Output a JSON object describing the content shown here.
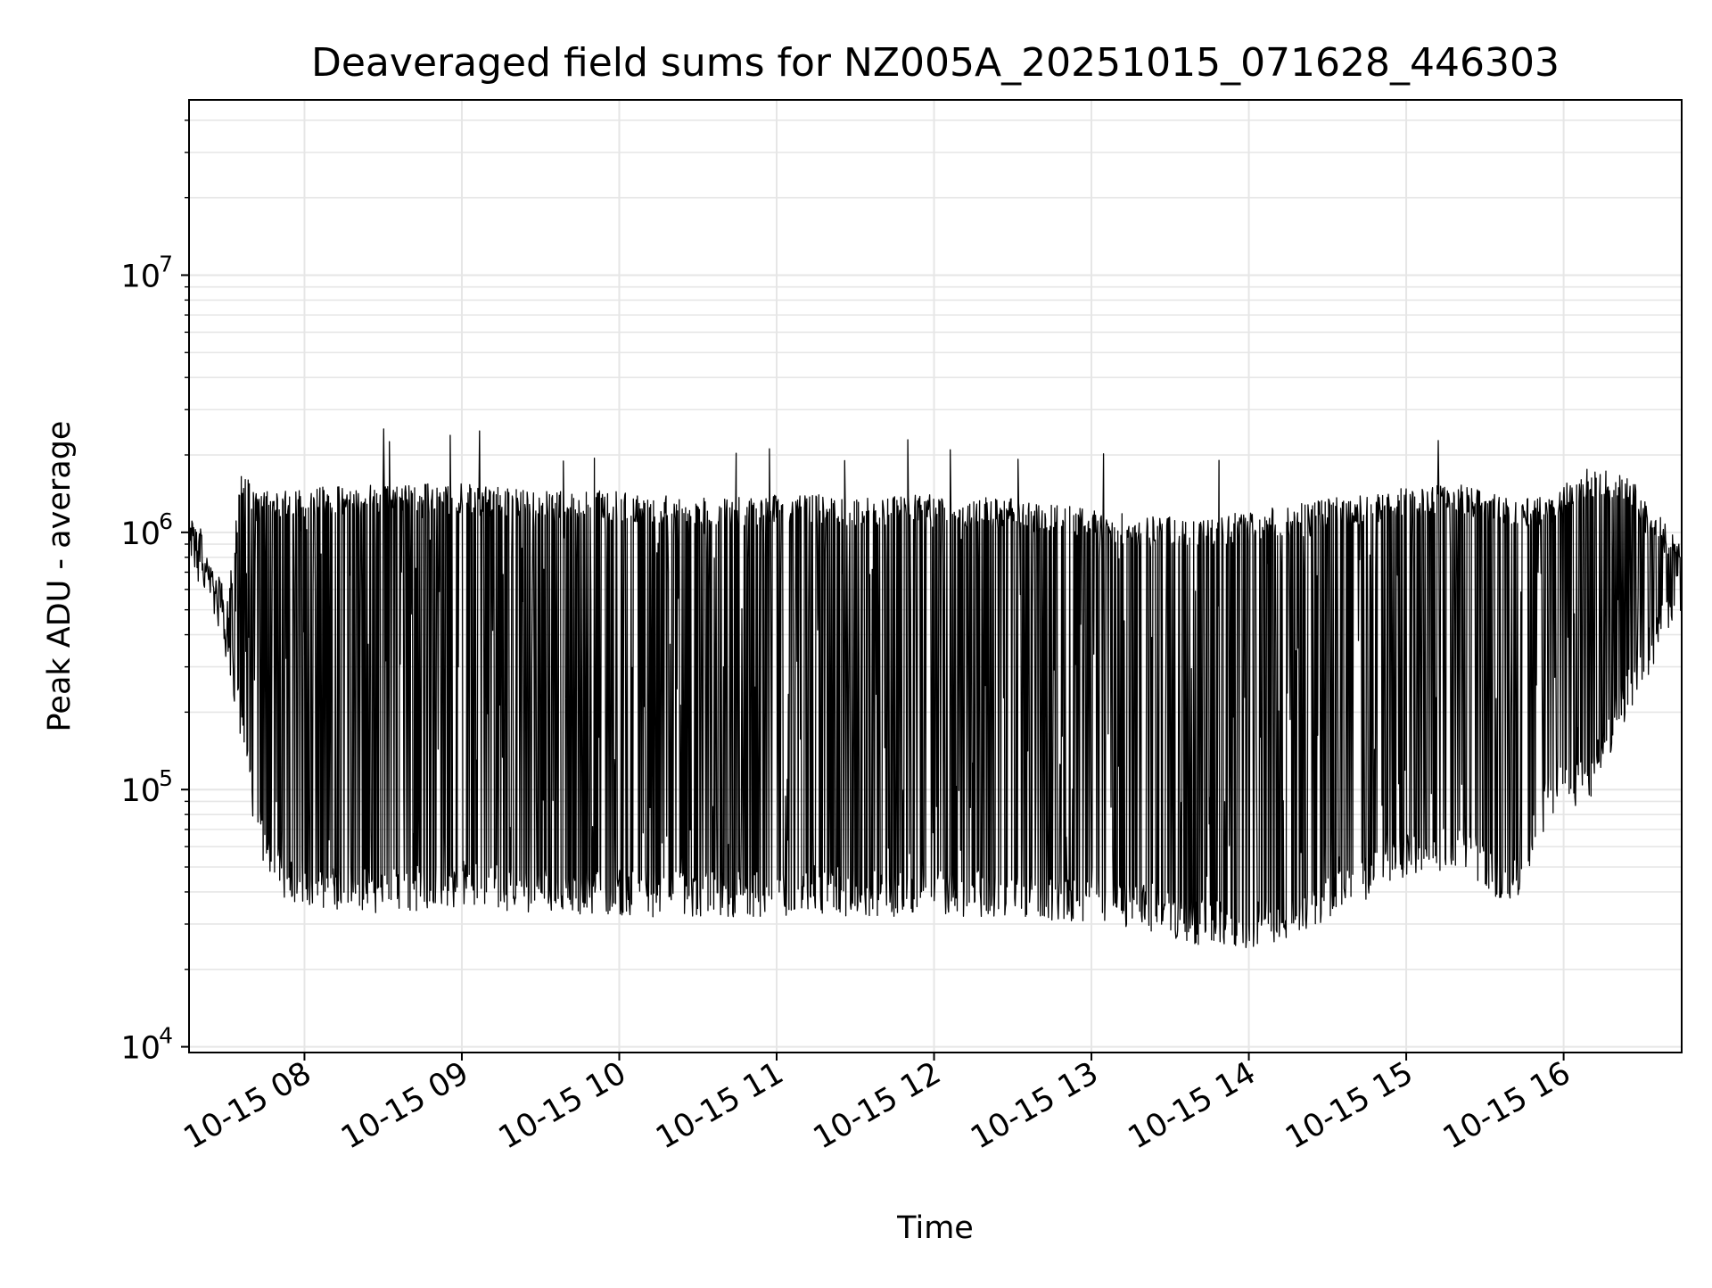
{
  "chart_data": {
    "type": "line",
    "title": "Deaveraged field sums for NZ005A_20251015_071628_446303",
    "xlabel": "Time",
    "ylabel": "Peak ADU - average",
    "yscale": "log",
    "xlim": [
      "2025-10-15 07:16",
      "2025-10-15 16:45"
    ],
    "ylim": [
      9500,
      48000000
    ],
    "grid": true,
    "legend": "none",
    "line_color": "#000000",
    "grid_color": "#e6e6e6",
    "x_ticks": [
      {
        "value": "2025-10-15 08:00",
        "label": "10-15 08"
      },
      {
        "value": "2025-10-15 09:00",
        "label": "10-15 09"
      },
      {
        "value": "2025-10-15 10:00",
        "label": "10-15 10"
      },
      {
        "value": "2025-10-15 11:00",
        "label": "10-15 11"
      },
      {
        "value": "2025-10-15 12:00",
        "label": "10-15 12"
      },
      {
        "value": "2025-10-15 13:00",
        "label": "10-15 13"
      },
      {
        "value": "2025-10-15 14:00",
        "label": "10-15 14"
      },
      {
        "value": "2025-10-15 15:00",
        "label": "10-15 15"
      },
      {
        "value": "2025-10-15 16:00",
        "label": "10-15 16"
      }
    ],
    "y_ticks": [
      {
        "value": 10000,
        "base": "10",
        "exp": "4"
      },
      {
        "value": 100000,
        "base": "10",
        "exp": "5"
      },
      {
        "value": 1000000,
        "base": "10",
        "exp": "6"
      },
      {
        "value": 10000000,
        "base": "10",
        "exp": "7"
      }
    ],
    "series": [
      {
        "envelope": {
          "time": [
            "2025-10-15 07:16",
            "2025-10-15 07:20",
            "2025-10-15 07:26",
            "2025-10-15 07:31",
            "2025-10-15 07:36",
            "2025-10-15 07:42",
            "2025-10-15 07:47",
            "2025-10-15 07:52",
            "2025-10-15 08:00",
            "2025-10-15 08:10",
            "2025-10-15 08:30",
            "2025-10-15 09:00",
            "2025-10-15 09:30",
            "2025-10-15 10:00",
            "2025-10-15 10:30",
            "2025-10-15 11:00",
            "2025-10-15 11:30",
            "2025-10-15 12:00",
            "2025-10-15 12:30",
            "2025-10-15 13:00",
            "2025-10-15 13:20",
            "2025-10-15 13:40",
            "2025-10-15 14:00",
            "2025-10-15 14:20",
            "2025-10-15 14:40",
            "2025-10-15 15:00",
            "2025-10-15 15:20",
            "2025-10-15 15:40",
            "2025-10-15 15:55",
            "2025-10-15 16:10",
            "2025-10-15 16:25",
            "2025-10-15 16:45"
          ],
          "upper": [
            1200000,
            1100000,
            700000,
            600000,
            1800000,
            1400000,
            1500000,
            1500000,
            1500000,
            1500000,
            1550000,
            1550000,
            1450000,
            1450000,
            1400000,
            1400000,
            1400000,
            1400000,
            1350000,
            1250000,
            1150000,
            1150000,
            1200000,
            1300000,
            1400000,
            1500000,
            1550000,
            1350000,
            1400000,
            1800000,
            1650000,
            900000
          ],
          "lower": [
            800000,
            600000,
            450000,
            300000,
            150000,
            60000,
            45000,
            38000,
            35000,
            34000,
            33000,
            35000,
            33000,
            32000,
            32000,
            32000,
            32000,
            32000,
            32000,
            30000,
            28000,
            25000,
            24000,
            26000,
            35000,
            45000,
            50000,
            33000,
            80000,
            90000,
            200000,
            500000
          ]
        }
      }
    ]
  }
}
